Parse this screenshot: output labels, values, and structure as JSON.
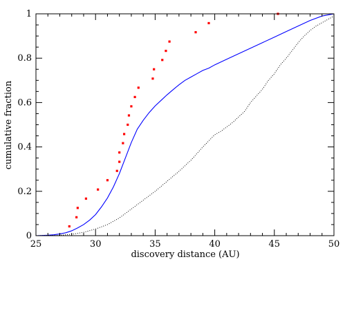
{
  "chart_data": {
    "type": "line",
    "xlabel": "discovery distance (AU)",
    "ylabel": "cumulative fraction",
    "xlim": [
      25,
      50
    ],
    "ylim": [
      0,
      1
    ],
    "x_ticks": [
      25,
      30,
      35,
      40,
      45,
      50
    ],
    "x_tick_labels": [
      "25",
      "30",
      "35",
      "40",
      "45",
      "50"
    ],
    "y_ticks": [
      0,
      0.2,
      0.4,
      0.6,
      0.8,
      1
    ],
    "y_tick_labels": [
      "0",
      "0.2",
      "0.4",
      "0.6",
      "0.8",
      "1"
    ],
    "grid": false,
    "legend": "none",
    "series": [
      {
        "style": "points",
        "color": "#ff0000",
        "points": [
          [
            27.8,
            0.042
          ],
          [
            28.4,
            0.083
          ],
          [
            28.5,
            0.125
          ],
          [
            29.2,
            0.167
          ],
          [
            30.2,
            0.208
          ],
          [
            31.0,
            0.25
          ],
          [
            31.8,
            0.292
          ],
          [
            32.0,
            0.333
          ],
          [
            32.0,
            0.375
          ],
          [
            32.3,
            0.417
          ],
          [
            32.4,
            0.458
          ],
          [
            32.7,
            0.5
          ],
          [
            32.8,
            0.542
          ],
          [
            33.0,
            0.583
          ],
          [
            33.3,
            0.625
          ],
          [
            33.6,
            0.667
          ],
          [
            34.8,
            0.708
          ],
          [
            34.9,
            0.75
          ],
          [
            35.6,
            0.792
          ],
          [
            35.9,
            0.833
          ],
          [
            36.2,
            0.875
          ],
          [
            38.4,
            0.917
          ],
          [
            39.5,
            0.958
          ],
          [
            45.3,
            1.0
          ]
        ]
      },
      {
        "style": "solid",
        "color": "#0000ff",
        "points": [
          [
            25.0,
            0.0
          ],
          [
            26.0,
            0.002
          ],
          [
            26.5,
            0.004
          ],
          [
            27.0,
            0.008
          ],
          [
            27.5,
            0.013
          ],
          [
            28.0,
            0.022
          ],
          [
            28.5,
            0.035
          ],
          [
            29.0,
            0.05
          ],
          [
            29.5,
            0.07
          ],
          [
            30.0,
            0.095
          ],
          [
            30.5,
            0.13
          ],
          [
            31.0,
            0.17
          ],
          [
            31.5,
            0.22
          ],
          [
            32.0,
            0.28
          ],
          [
            32.5,
            0.35
          ],
          [
            33.0,
            0.42
          ],
          [
            33.5,
            0.48
          ],
          [
            34.0,
            0.52
          ],
          [
            34.5,
            0.555
          ],
          [
            35.0,
            0.585
          ],
          [
            35.5,
            0.61
          ],
          [
            36.0,
            0.635
          ],
          [
            36.5,
            0.658
          ],
          [
            37.0,
            0.68
          ],
          [
            37.5,
            0.7
          ],
          [
            38.0,
            0.715
          ],
          [
            38.5,
            0.73
          ],
          [
            39.0,
            0.745
          ],
          [
            39.5,
            0.755
          ],
          [
            40.0,
            0.77
          ],
          [
            41.0,
            0.795
          ],
          [
            42.0,
            0.82
          ],
          [
            43.0,
            0.845
          ],
          [
            44.0,
            0.87
          ],
          [
            45.0,
            0.895
          ],
          [
            46.0,
            0.92
          ],
          [
            47.0,
            0.945
          ],
          [
            48.0,
            0.97
          ],
          [
            49.0,
            0.99
          ],
          [
            50.0,
            1.0
          ]
        ]
      },
      {
        "style": "dotted",
        "color": "#000000",
        "points": [
          [
            25.0,
            0.0
          ],
          [
            27.0,
            0.002
          ],
          [
            28.0,
            0.006
          ],
          [
            29.0,
            0.015
          ],
          [
            30.0,
            0.03
          ],
          [
            31.0,
            0.05
          ],
          [
            32.0,
            0.08
          ],
          [
            33.0,
            0.12
          ],
          [
            34.0,
            0.16
          ],
          [
            35.0,
            0.2
          ],
          [
            36.0,
            0.245
          ],
          [
            37.0,
            0.29
          ],
          [
            38.0,
            0.34
          ],
          [
            39.0,
            0.4
          ],
          [
            40.0,
            0.455
          ],
          [
            40.5,
            0.47
          ],
          [
            41.0,
            0.49
          ],
          [
            41.5,
            0.51
          ],
          [
            42.0,
            0.535
          ],
          [
            42.5,
            0.56
          ],
          [
            43.0,
            0.6
          ],
          [
            43.5,
            0.63
          ],
          [
            44.0,
            0.66
          ],
          [
            44.5,
            0.7
          ],
          [
            45.0,
            0.73
          ],
          [
            45.5,
            0.77
          ],
          [
            46.0,
            0.8
          ],
          [
            46.5,
            0.835
          ],
          [
            47.0,
            0.87
          ],
          [
            47.5,
            0.9
          ],
          [
            48.0,
            0.925
          ],
          [
            48.5,
            0.945
          ],
          [
            49.0,
            0.96
          ],
          [
            49.5,
            0.975
          ],
          [
            50.0,
            0.99
          ]
        ]
      }
    ]
  }
}
